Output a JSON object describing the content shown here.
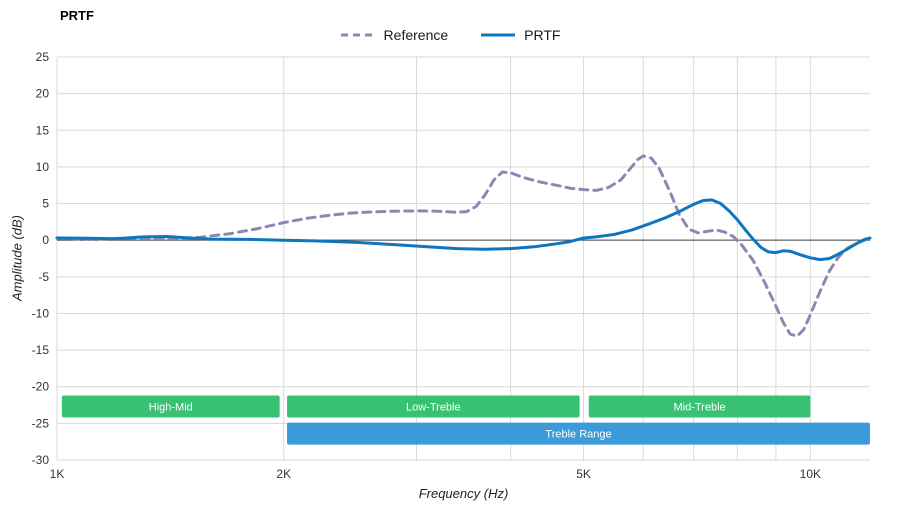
{
  "title": "PRTF",
  "legend": [
    {
      "label": "Reference",
      "color": "#8c88b4",
      "dash": true
    },
    {
      "label": "PRTF",
      "color": "#0e76bf",
      "dash": false
    }
  ],
  "chart_data": {
    "type": "line",
    "title": "PRTF",
    "xlabel": "Frequency (Hz)",
    "ylabel": "Amplitude (dB)",
    "x_scale": "log",
    "xlim": [
      1000,
      12000
    ],
    "ylim": [
      -30,
      25
    ],
    "grid": true,
    "legend_position": "top-center",
    "y_ticks": [
      25,
      20,
      15,
      10,
      5,
      0,
      -5,
      -10,
      -15,
      -20,
      -25,
      -30
    ],
    "x_ticks": [
      {
        "value": 1000,
        "label": "1K"
      },
      {
        "value": 2000,
        "label": "2K"
      },
      {
        "value": 5000,
        "label": "5K"
      },
      {
        "value": 10000,
        "label": "10K"
      }
    ],
    "x_gridlines": [
      1000,
      2000,
      3000,
      4000,
      5000,
      6000,
      7000,
      8000,
      9000,
      10000
    ],
    "colors": {
      "grid": "#d9d9d9",
      "zero_line": "#3c3c3c",
      "tick_text": "#333333",
      "band_text": "#ffffff",
      "background": "#ffffff"
    },
    "series": [
      {
        "name": "Reference",
        "color": "#8c88b4",
        "dash": "8,6",
        "width": 3,
        "points": [
          [
            1000,
            0.3
          ],
          [
            1100,
            0.1
          ],
          [
            1250,
            0.3
          ],
          [
            1400,
            0.2
          ],
          [
            1550,
            0.4
          ],
          [
            1700,
            0.9
          ],
          [
            1850,
            1.6
          ],
          [
            2000,
            2.4
          ],
          [
            2150,
            3.0
          ],
          [
            2300,
            3.4
          ],
          [
            2450,
            3.7
          ],
          [
            2600,
            3.85
          ],
          [
            2800,
            3.95
          ],
          [
            3000,
            4.0
          ],
          [
            3200,
            3.95
          ],
          [
            3400,
            3.8
          ],
          [
            3500,
            3.9
          ],
          [
            3600,
            4.6
          ],
          [
            3700,
            6.2
          ],
          [
            3800,
            8.2
          ],
          [
            3900,
            9.3
          ],
          [
            4000,
            9.2
          ],
          [
            4150,
            8.6
          ],
          [
            4350,
            8.0
          ],
          [
            4600,
            7.5
          ],
          [
            4800,
            7.1
          ],
          [
            5000,
            6.9
          ],
          [
            5200,
            6.8
          ],
          [
            5400,
            7.2
          ],
          [
            5600,
            8.2
          ],
          [
            5750,
            9.6
          ],
          [
            5900,
            11.0
          ],
          [
            6000,
            11.5
          ],
          [
            6150,
            11.2
          ],
          [
            6300,
            9.8
          ],
          [
            6500,
            6.8
          ],
          [
            6700,
            3.5
          ],
          [
            6900,
            1.5
          ],
          [
            7100,
            1.0
          ],
          [
            7300,
            1.2
          ],
          [
            7500,
            1.4
          ],
          [
            7700,
            1.1
          ],
          [
            7900,
            0.5
          ],
          [
            8100,
            -0.6
          ],
          [
            8400,
            -2.8
          ],
          [
            8700,
            -5.8
          ],
          [
            9000,
            -9.0
          ],
          [
            9200,
            -11.2
          ],
          [
            9400,
            -12.8
          ],
          [
            9600,
            -13.1
          ],
          [
            9800,
            -12.2
          ],
          [
            10000,
            -10.2
          ],
          [
            10300,
            -7.0
          ],
          [
            10600,
            -4.2
          ],
          [
            10900,
            -2.3
          ],
          [
            11200,
            -1.1
          ],
          [
            11600,
            -0.3
          ],
          [
            12000,
            0.3
          ]
        ]
      },
      {
        "name": "PRTF",
        "color": "#0e76bf",
        "dash": null,
        "width": 3,
        "points": [
          [
            1000,
            0.3
          ],
          [
            1100,
            0.25
          ],
          [
            1200,
            0.2
          ],
          [
            1300,
            0.45
          ],
          [
            1400,
            0.5
          ],
          [
            1500,
            0.3
          ],
          [
            1600,
            0.15
          ],
          [
            1800,
            0.1
          ],
          [
            2000,
            0.0
          ],
          [
            2200,
            -0.1
          ],
          [
            2500,
            -0.3
          ],
          [
            2800,
            -0.6
          ],
          [
            3100,
            -0.9
          ],
          [
            3400,
            -1.15
          ],
          [
            3700,
            -1.25
          ],
          [
            4000,
            -1.15
          ],
          [
            4300,
            -0.9
          ],
          [
            4600,
            -0.5
          ],
          [
            4800,
            -0.2
          ],
          [
            5000,
            0.3
          ],
          [
            5200,
            0.45
          ],
          [
            5500,
            0.8
          ],
          [
            5800,
            1.4
          ],
          [
            6100,
            2.2
          ],
          [
            6400,
            3.0
          ],
          [
            6700,
            3.9
          ],
          [
            7000,
            4.9
          ],
          [
            7200,
            5.4
          ],
          [
            7400,
            5.5
          ],
          [
            7600,
            5.0
          ],
          [
            7800,
            4.0
          ],
          [
            8000,
            2.8
          ],
          [
            8200,
            1.4
          ],
          [
            8400,
            0.1
          ],
          [
            8600,
            -1.0
          ],
          [
            8800,
            -1.6
          ],
          [
            9000,
            -1.7
          ],
          [
            9200,
            -1.45
          ],
          [
            9400,
            -1.5
          ],
          [
            9700,
            -2.0
          ],
          [
            10000,
            -2.4
          ],
          [
            10300,
            -2.65
          ],
          [
            10600,
            -2.5
          ],
          [
            10900,
            -1.9
          ],
          [
            11200,
            -1.2
          ],
          [
            11500,
            -0.5
          ],
          [
            11800,
            0.1
          ],
          [
            12000,
            0.3
          ]
        ]
      }
    ],
    "bands": [
      {
        "label": "High-Mid",
        "from": 1015,
        "to": 1975,
        "db_top": -21.2,
        "db_bottom": -24.2,
        "color": "#38c172"
      },
      {
        "label": "Low-Treble",
        "from": 2020,
        "to": 4940,
        "db_top": -21.2,
        "db_bottom": -24.2,
        "color": "#38c172"
      },
      {
        "label": "Mid-Treble",
        "from": 5080,
        "to": 10000,
        "db_top": -21.2,
        "db_bottom": -24.2,
        "color": "#38c172"
      },
      {
        "label": "Treble Range",
        "from": 2020,
        "to": 12000,
        "db_top": -24.9,
        "db_bottom": -27.9,
        "color": "#3b9bd8"
      }
    ]
  }
}
